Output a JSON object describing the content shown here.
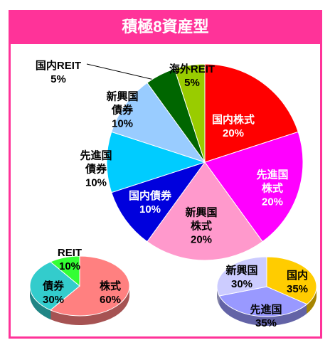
{
  "title": "積極8資産型",
  "chart_data": [
    {
      "type": "pie",
      "categories": [
        "国内株式",
        "先進国株式",
        "新興国株式",
        "国内債券",
        "先進国債券",
        "新興国債券",
        "国内REIT",
        "海外REIT"
      ],
      "values": [
        20,
        20,
        20,
        10,
        10,
        10,
        5,
        5
      ],
      "value_labels": [
        "20%",
        "20%",
        "20%",
        "10%",
        "10%",
        "10%",
        "5%",
        "5%"
      ],
      "colors": [
        "#ff0000",
        "#ff00ff",
        "#ff99cc",
        "#0000dd",
        "#00ccff",
        "#99ccff",
        "#006600",
        "#99cc00"
      ]
    },
    {
      "type": "pie",
      "categories": [
        "株式",
        "債券",
        "REIT"
      ],
      "values": [
        60,
        30,
        10
      ],
      "value_labels": [
        "60%",
        "30%",
        "10%"
      ],
      "colors": [
        "#ff8080",
        "#33cccc",
        "#33ff33"
      ]
    },
    {
      "type": "pie",
      "categories": [
        "国内",
        "先進国",
        "新興国"
      ],
      "values": [
        35,
        35,
        30
      ],
      "value_labels": [
        "35%",
        "35%",
        "30%"
      ],
      "colors": [
        "#ffcc00",
        "#9999ff",
        "#ccccff"
      ]
    }
  ]
}
